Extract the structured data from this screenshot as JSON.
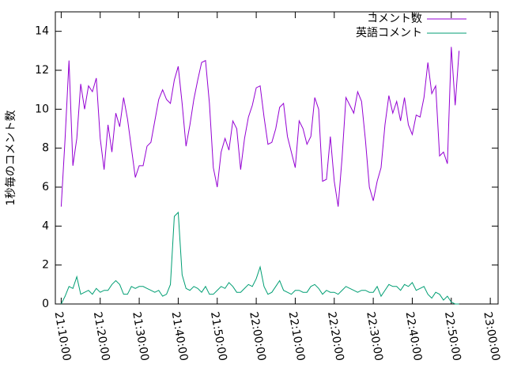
{
  "chart_data": {
    "type": "line",
    "ylabel": "1秒毎のコメント数",
    "x": [
      "21:10:00",
      "21:11:00",
      "21:12:00",
      "21:13:00",
      "21:14:00",
      "21:15:00",
      "21:16:00",
      "21:17:00",
      "21:18:00",
      "21:19:00",
      "21:20:00",
      "21:21:00",
      "21:22:00",
      "21:23:00",
      "21:24:00",
      "21:25:00",
      "21:26:00",
      "21:27:00",
      "21:28:00",
      "21:29:00",
      "21:30:00",
      "21:31:00",
      "21:32:00",
      "21:33:00",
      "21:34:00",
      "21:35:00",
      "21:36:00",
      "21:37:00",
      "21:38:00",
      "21:39:00",
      "21:40:00",
      "21:41:00",
      "21:42:00",
      "21:43:00",
      "21:44:00",
      "21:45:00",
      "21:46:00",
      "21:47:00",
      "21:48:00",
      "21:49:00",
      "21:50:00",
      "21:51:00",
      "21:52:00",
      "21:53:00",
      "21:54:00",
      "21:55:00",
      "21:56:00",
      "21:57:00",
      "21:58:00",
      "21:59:00",
      "22:00:00",
      "22:01:00",
      "22:02:00",
      "22:03:00",
      "22:04:00",
      "22:05:00",
      "22:06:00",
      "22:07:00",
      "22:08:00",
      "22:09:00",
      "22:10:00",
      "22:11:00",
      "22:12:00",
      "22:13:00",
      "22:14:00",
      "22:15:00",
      "22:16:00",
      "22:17:00",
      "22:18:00",
      "22:19:00",
      "22:20:00",
      "22:21:00",
      "22:22:00",
      "22:23:00",
      "22:24:00",
      "22:25:00",
      "22:26:00",
      "22:27:00",
      "22:28:00",
      "22:29:00",
      "22:30:00",
      "22:31:00",
      "22:32:00",
      "22:33:00",
      "22:34:00",
      "22:35:00",
      "22:36:00",
      "22:37:00",
      "22:38:00",
      "22:39:00",
      "22:40:00",
      "22:41:00",
      "22:42:00",
      "22:43:00",
      "22:44:00",
      "22:45:00",
      "22:46:00",
      "22:47:00",
      "22:48:00",
      "22:49:00",
      "22:50:00",
      "22:51:00",
      "22:52:00"
    ],
    "series": [
      {
        "name": "コメント数",
        "color": "#9400d3",
        "values": [
          5.0,
          8.5,
          12.5,
          7.1,
          8.5,
          11.3,
          10.0,
          11.2,
          10.9,
          11.6,
          8.5,
          6.9,
          9.2,
          7.8,
          9.8,
          9.1,
          10.6,
          9.5,
          8.0,
          6.5,
          7.1,
          7.1,
          8.1,
          8.3,
          9.4,
          10.5,
          11.0,
          10.5,
          10.3,
          11.5,
          12.2,
          10.3,
          8.1,
          9.2,
          10.5,
          11.5,
          12.4,
          12.5,
          10.3,
          7.0,
          6.0,
          7.8,
          8.5,
          7.9,
          9.4,
          9.0,
          6.9,
          8.5,
          9.6,
          10.2,
          11.1,
          11.2,
          9.6,
          8.2,
          8.3,
          9.0,
          10.1,
          10.3,
          8.6,
          7.8,
          7.0,
          9.4,
          9.0,
          8.2,
          8.6,
          10.6,
          10.0,
          6.3,
          6.4,
          8.6,
          6.3,
          5.0,
          7.5,
          10.6,
          10.2,
          9.8,
          10.9,
          10.4,
          8.4,
          6.0,
          5.3,
          6.3,
          7.0,
          9.2,
          10.7,
          9.8,
          10.4,
          9.4,
          10.6,
          9.2,
          8.7,
          9.7,
          9.6,
          10.6,
          12.4,
          10.8,
          11.2,
          7.6,
          7.8,
          7.2,
          13.2,
          10.2,
          13.0
        ]
      },
      {
        "name": "英語コメント",
        "color": "#009e73",
        "values": [
          0.0,
          0.4,
          0.9,
          0.8,
          1.4,
          0.5,
          0.6,
          0.7,
          0.5,
          0.8,
          0.6,
          0.7,
          0.7,
          1.0,
          1.2,
          1.0,
          0.5,
          0.5,
          0.9,
          0.8,
          0.9,
          0.9,
          0.8,
          0.7,
          0.6,
          0.7,
          0.4,
          0.5,
          1.0,
          4.5,
          4.7,
          1.5,
          0.8,
          0.7,
          0.9,
          0.8,
          0.6,
          0.9,
          0.5,
          0.5,
          0.7,
          0.9,
          0.8,
          1.1,
          0.9,
          0.6,
          0.6,
          0.8,
          1.0,
          0.9,
          1.3,
          1.9,
          0.9,
          0.5,
          0.6,
          0.9,
          1.2,
          0.7,
          0.6,
          0.5,
          0.7,
          0.7,
          0.6,
          0.6,
          0.9,
          1.0,
          0.8,
          0.5,
          0.7,
          0.6,
          0.6,
          0.5,
          0.7,
          0.9,
          0.8,
          0.7,
          0.6,
          0.7,
          0.7,
          0.6,
          0.6,
          0.9,
          0.4,
          0.7,
          1.0,
          0.9,
          0.9,
          0.7,
          1.0,
          0.9,
          1.1,
          0.7,
          0.8,
          0.9,
          0.5,
          0.3,
          0.6,
          0.5,
          0.2,
          0.4,
          0.1,
          0.0,
          0.0
        ]
      }
    ],
    "xlim": [
      "21:08:30",
      "23:02:00"
    ],
    "xticks": [
      "21:10:00",
      "21:20:00",
      "21:30:00",
      "21:40:00",
      "21:50:00",
      "22:00:00",
      "22:10:00",
      "22:20:00",
      "22:30:00",
      "22:40:00",
      "22:50:00",
      "23:00:00"
    ],
    "ylim": [
      0,
      15
    ],
    "yticks": [
      0,
      2,
      4,
      6,
      8,
      10,
      12,
      14
    ],
    "legend": "top-right"
  }
}
